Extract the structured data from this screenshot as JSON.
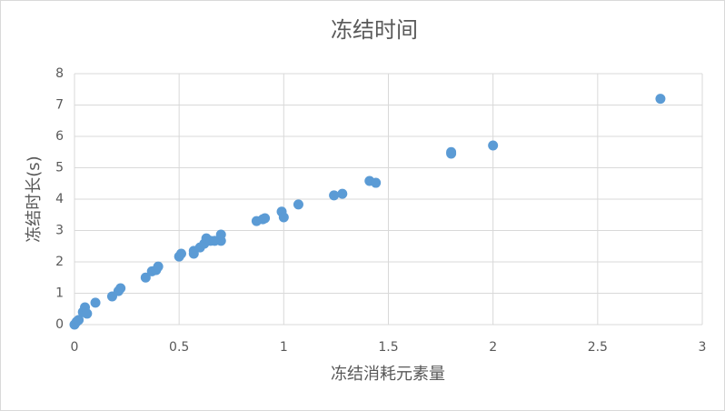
{
  "chart_data": {
    "type": "scatter",
    "title": "冻结时间",
    "x_label": "冻结消耗元素量",
    "y_label": "冻结时长(s)",
    "color": "#5b9bd5",
    "grid": true,
    "xlim": [
      0,
      3
    ],
    "xticks": [
      0,
      0.5,
      1,
      1.5,
      2,
      2.5,
      3
    ],
    "ylim": [
      0,
      8
    ],
    "yticks": [
      0,
      1,
      2,
      3,
      4,
      5,
      6,
      7,
      8
    ],
    "x": [
      0,
      0.01,
      0.02,
      0.04,
      0.05,
      0.06,
      0.1,
      0.18,
      0.21,
      0.22,
      0.34,
      0.37,
      0.39,
      0.4,
      0.5,
      0.51,
      0.57,
      0.57,
      0.6,
      0.62,
      0.63,
      0.65,
      0.67,
      0.7,
      0.7,
      0.87,
      0.9,
      0.91,
      0.99,
      1,
      1.07,
      1.24,
      1.28,
      1.41,
      1.44,
      1.8,
      1.8,
      2,
      2.8
    ],
    "values": [
      0,
      0.09,
      0.15,
      0.4,
      0.55,
      0.35,
      0.7,
      0.9,
      1.07,
      1.16,
      1.5,
      1.7,
      1.74,
      1.85,
      2.17,
      2.26,
      2.35,
      2.26,
      2.46,
      2.58,
      2.75,
      2.67,
      2.67,
      2.67,
      2.87,
      3.3,
      3.36,
      3.39,
      3.6,
      3.42,
      3.83,
      4.12,
      4.17,
      4.58,
      4.52,
      5.5,
      5.45,
      5.71,
      7.2
    ]
  }
}
